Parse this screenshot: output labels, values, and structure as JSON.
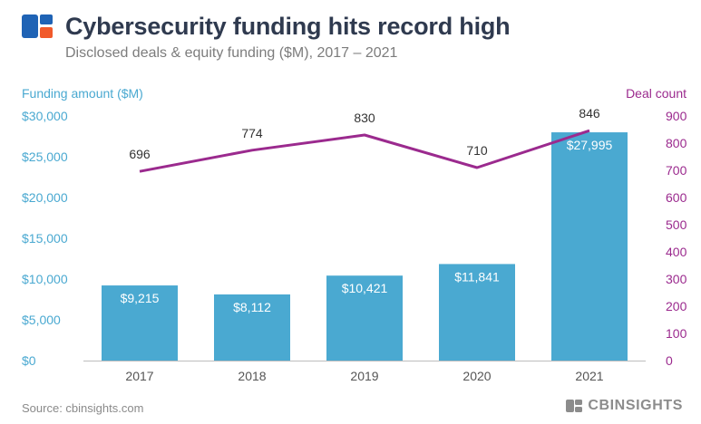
{
  "header": {
    "title": "Cybersecurity funding hits record high",
    "subtitle": "Disclosed deals & equity funding ($M), 2017 – 2021"
  },
  "footer": {
    "source": "Source: cbinsights.com",
    "brand": "CBINSIGHTS"
  },
  "colors": {
    "bar": "#4aa9d1",
    "line": "#9b2a8e",
    "title": "#2f3a4f",
    "left_axis": "#4aa9d1",
    "right_axis": "#9b2a8e",
    "logo_blue": "#1f63b5",
    "logo_orange": "#f15a2b"
  },
  "chart_data": {
    "type": "bar+line",
    "categories": [
      "2017",
      "2018",
      "2019",
      "2020",
      "2021"
    ],
    "series": [
      {
        "name": "Funding amount ($M)",
        "type": "bar",
        "axis": "left",
        "values": [
          9215,
          8112,
          10421,
          11841,
          27995
        ],
        "labels": [
          "$9,215",
          "$8,112",
          "$10,421",
          "$11,841",
          "$27,995"
        ]
      },
      {
        "name": "Deal count",
        "type": "line",
        "axis": "right",
        "values": [
          696,
          774,
          830,
          710,
          846
        ],
        "labels": [
          "696",
          "774",
          "830",
          "710",
          "846"
        ]
      }
    ],
    "left_axis": {
      "label": "Funding amount ($M)",
      "ticks": [
        "$0",
        "$5,000",
        "$10,000",
        "$15,000",
        "$20,000",
        "$25,000",
        "$30,000"
      ],
      "range": [
        0,
        30000
      ]
    },
    "right_axis": {
      "label": "Deal count",
      "ticks": [
        "0",
        "100",
        "200",
        "300",
        "400",
        "500",
        "600",
        "700",
        "800",
        "900"
      ],
      "range": [
        0,
        900
      ]
    },
    "grid": false
  }
}
